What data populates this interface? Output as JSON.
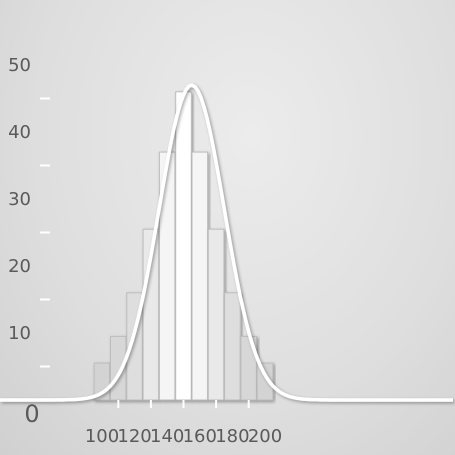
{
  "chart_data": {
    "type": "bar",
    "x": [
      100,
      110,
      120,
      130,
      140,
      150,
      160,
      170,
      180,
      190,
      200
    ],
    "values": [
      5.5,
      9.5,
      16,
      25.5,
      37,
      46,
      37,
      25.5,
      16,
      9.5,
      5.5
    ],
    "xlim": [
      80,
      205
    ],
    "ylim": [
      0,
      50
    ],
    "x_ticks": [
      100,
      120,
      140,
      160,
      180,
      200
    ],
    "y_ticks": [
      10,
      20,
      30,
      40,
      50
    ],
    "origin_label": "0",
    "curve": {
      "type": "normal",
      "mean": 155,
      "peak": 47,
      "sigma": 20
    },
    "title": "",
    "xlabel": "",
    "ylabel": "",
    "grid": false,
    "colors": {
      "bar_fill": "#f4f4f4",
      "bar_peak": "#ffffff",
      "curve": "#ffffff",
      "axis": "#ffffff",
      "text": "#5a5a5a"
    }
  }
}
